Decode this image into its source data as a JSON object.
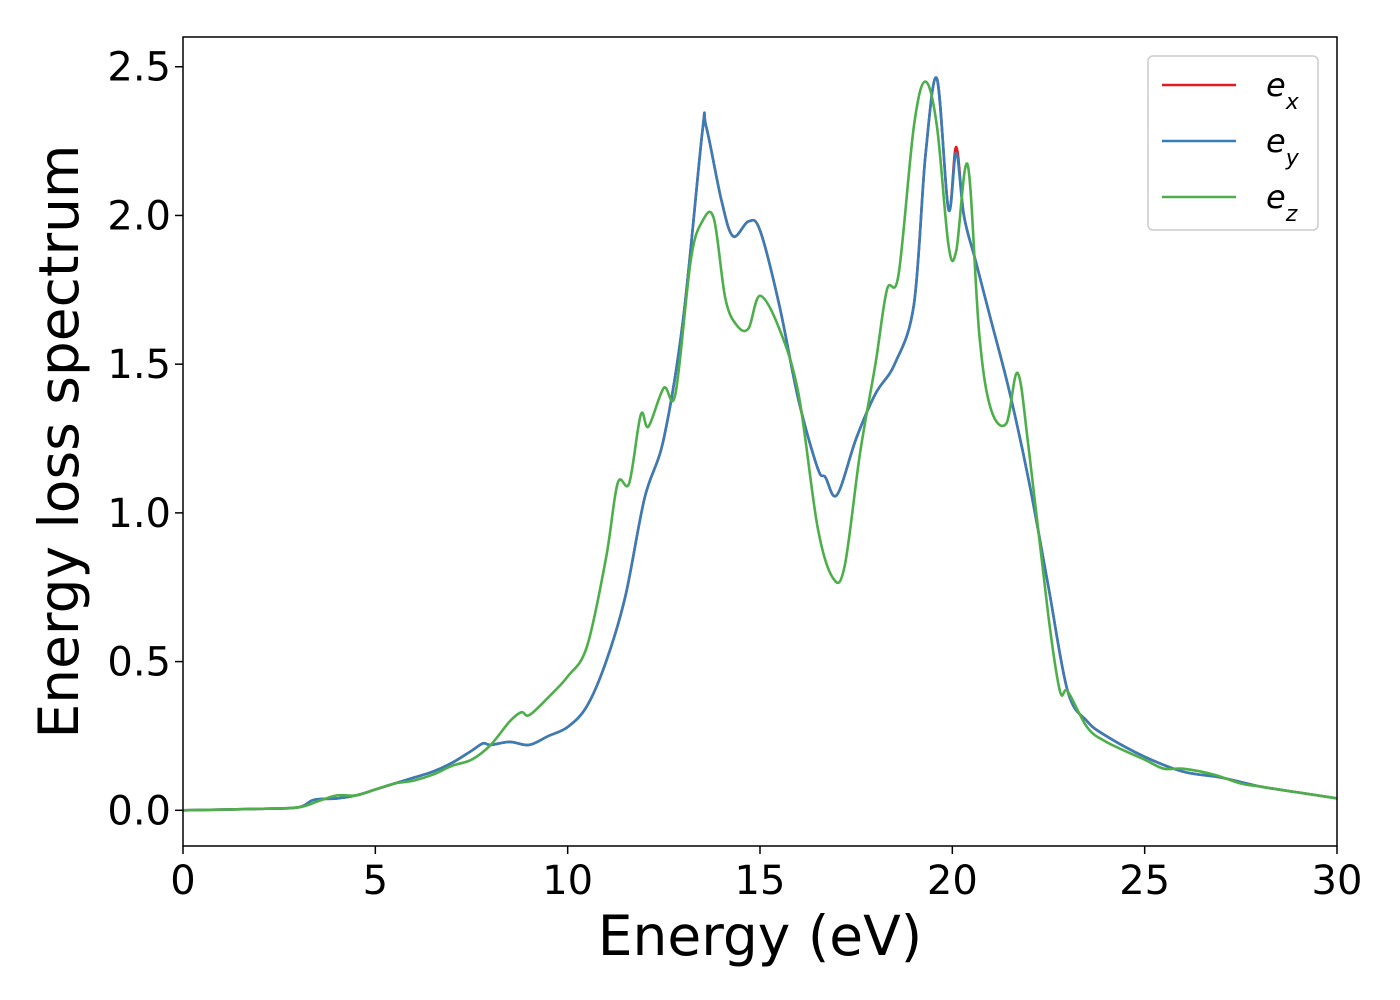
{
  "chart_data": {
    "type": "line",
    "xlabel": "Energy (eV)",
    "ylabel": "Energy loss spectrum",
    "xlim": [
      0,
      30
    ],
    "ylim": [
      -0.12,
      2.6
    ],
    "xticks": [
      "0",
      "5",
      "10",
      "15",
      "20",
      "25",
      "30"
    ],
    "yticks": [
      "0.0",
      "0.5",
      "1.0",
      "1.5",
      "2.0",
      "2.5"
    ],
    "grid": false,
    "legend_position": "top-right",
    "series": [
      {
        "name": "e_x",
        "base": "e",
        "subscript": "x",
        "color": "#e41a1c",
        "x": [
          0,
          2,
          3,
          3.4,
          4,
          4.5,
          5,
          5.5,
          6,
          6.5,
          7,
          7.5,
          7.8,
          8,
          8.5,
          9,
          9.5,
          10,
          10.5,
          11,
          11.5,
          12,
          12.5,
          13,
          13.5,
          13.6,
          14,
          14.3,
          14.7,
          15,
          15.5,
          16,
          16.5,
          16.7,
          17,
          17.5,
          18,
          18.5,
          19,
          19.3,
          19.6,
          19.9,
          20.1,
          20.3,
          20.6,
          21,
          21.5,
          22,
          22.5,
          23,
          23.5,
          24,
          25,
          26,
          27,
          28,
          29,
          30
        ],
        "y": [
          0.0,
          0.005,
          0.01,
          0.035,
          0.04,
          0.05,
          0.07,
          0.09,
          0.11,
          0.13,
          0.16,
          0.2,
          0.225,
          0.22,
          0.23,
          0.22,
          0.25,
          0.28,
          0.35,
          0.5,
          0.72,
          1.05,
          1.25,
          1.65,
          2.28,
          2.3,
          2.05,
          1.93,
          1.98,
          1.95,
          1.7,
          1.38,
          1.15,
          1.12,
          1.06,
          1.25,
          1.4,
          1.5,
          1.7,
          2.2,
          2.46,
          2.02,
          2.23,
          2.0,
          1.85,
          1.65,
          1.4,
          1.1,
          0.75,
          0.4,
          0.3,
          0.25,
          0.18,
          0.13,
          0.11,
          0.08,
          0.06,
          0.04
        ]
      },
      {
        "name": "e_y",
        "base": "e",
        "subscript": "y",
        "color": "#377eb8",
        "x": [
          0,
          2,
          3,
          3.4,
          4,
          4.5,
          5,
          5.5,
          6,
          6.5,
          7,
          7.5,
          7.8,
          8,
          8.5,
          9,
          9.5,
          10,
          10.5,
          11,
          11.5,
          12,
          12.5,
          13,
          13.5,
          13.6,
          14,
          14.3,
          14.7,
          15,
          15.5,
          16,
          16.5,
          16.7,
          17,
          17.5,
          18,
          18.5,
          19,
          19.3,
          19.6,
          19.9,
          20.1,
          20.3,
          20.6,
          21,
          21.5,
          22,
          22.5,
          23,
          23.5,
          24,
          25,
          26,
          27,
          28,
          29,
          30
        ],
        "y": [
          0.0,
          0.005,
          0.01,
          0.035,
          0.04,
          0.05,
          0.07,
          0.09,
          0.11,
          0.13,
          0.16,
          0.2,
          0.225,
          0.22,
          0.23,
          0.22,
          0.25,
          0.28,
          0.35,
          0.5,
          0.72,
          1.05,
          1.25,
          1.65,
          2.28,
          2.3,
          2.05,
          1.93,
          1.98,
          1.95,
          1.7,
          1.38,
          1.15,
          1.12,
          1.06,
          1.25,
          1.4,
          1.5,
          1.7,
          2.2,
          2.46,
          2.02,
          2.21,
          2.0,
          1.85,
          1.65,
          1.4,
          1.1,
          0.75,
          0.4,
          0.3,
          0.25,
          0.18,
          0.13,
          0.11,
          0.08,
          0.06,
          0.04
        ]
      },
      {
        "name": "e_z",
        "base": "e",
        "subscript": "z",
        "color": "#4daf4a",
        "x": [
          0,
          2,
          3,
          3.5,
          4,
          4.5,
          5,
          5.5,
          6,
          6.5,
          7,
          7.5,
          8,
          8.5,
          8.8,
          9,
          9.5,
          10,
          10.5,
          11,
          11.3,
          11.6,
          11.9,
          12.1,
          12.5,
          12.8,
          13.2,
          13.5,
          13.8,
          14.1,
          14.4,
          14.7,
          15.0,
          15.5,
          16,
          16.5,
          16.9,
          17.2,
          17.6,
          18,
          18.3,
          18.6,
          19,
          19.3,
          19.6,
          19.9,
          20.1,
          20.4,
          20.7,
          21,
          21.4,
          21.7,
          22,
          22.5,
          22.8,
          23,
          23.5,
          24,
          25,
          25.5,
          26,
          26.8,
          27.5,
          28,
          29,
          30
        ],
        "y": [
          0.0,
          0.005,
          0.01,
          0.03,
          0.05,
          0.05,
          0.07,
          0.09,
          0.1,
          0.12,
          0.15,
          0.17,
          0.22,
          0.3,
          0.33,
          0.32,
          0.38,
          0.45,
          0.55,
          0.85,
          1.1,
          1.1,
          1.33,
          1.29,
          1.42,
          1.4,
          1.85,
          1.98,
          1.99,
          1.72,
          1.63,
          1.62,
          1.73,
          1.62,
          1.4,
          0.95,
          0.78,
          0.82,
          1.2,
          1.5,
          1.75,
          1.8,
          2.3,
          2.45,
          2.3,
          1.9,
          1.88,
          2.17,
          1.6,
          1.35,
          1.3,
          1.47,
          1.2,
          0.65,
          0.4,
          0.4,
          0.28,
          0.23,
          0.17,
          0.14,
          0.14,
          0.12,
          0.09,
          0.08,
          0.06,
          0.04
        ]
      }
    ]
  }
}
